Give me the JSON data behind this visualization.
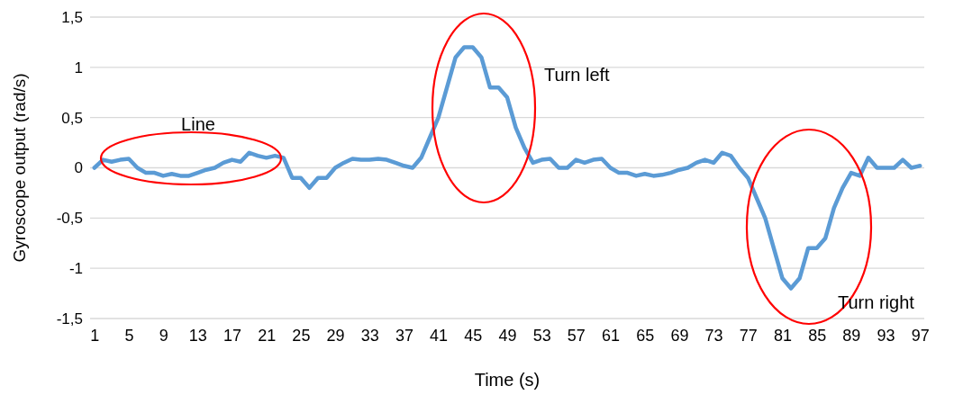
{
  "chart_data": {
    "type": "line",
    "xlabel": "Time (s)",
    "ylabel": "Gyroscope output (rad/s)",
    "x": [
      1,
      2,
      3,
      4,
      5,
      6,
      7,
      8,
      9,
      10,
      11,
      12,
      13,
      14,
      15,
      16,
      17,
      18,
      19,
      20,
      21,
      22,
      23,
      24,
      25,
      26,
      27,
      28,
      29,
      30,
      31,
      32,
      33,
      34,
      35,
      36,
      37,
      38,
      39,
      40,
      41,
      42,
      43,
      44,
      45,
      46,
      47,
      48,
      49,
      50,
      51,
      52,
      53,
      54,
      55,
      56,
      57,
      58,
      59,
      60,
      61,
      62,
      63,
      64,
      65,
      66,
      67,
      68,
      69,
      70,
      71,
      72,
      73,
      74,
      75,
      76,
      77,
      78,
      79,
      80,
      81,
      82,
      83,
      84,
      85,
      86,
      87,
      88,
      89,
      90,
      91,
      92,
      93,
      94,
      95,
      96,
      97
    ],
    "series": [
      {
        "color": "#5b9bd5",
        "values": [
          0,
          0.08,
          0.06,
          0.08,
          0.09,
          0,
          -0.05,
          -0.05,
          -0.08,
          -0.06,
          -0.08,
          -0.08,
          -0.05,
          -0.02,
          0,
          0.05,
          0.08,
          0.06,
          0.15,
          0.12,
          0.1,
          0.12,
          0.1,
          -0.1,
          -0.1,
          -0.2,
          -0.1,
          -0.1,
          0,
          0.05,
          0.09,
          0.08,
          0.08,
          0.09,
          0.08,
          0.05,
          0.02,
          0,
          0.1,
          0.3,
          0.5,
          0.8,
          1.1,
          1.2,
          1.2,
          1.1,
          0.8,
          0.8,
          0.7,
          0.4,
          0.2,
          0.05,
          0.08,
          0.09,
          0,
          0,
          0.08,
          0.05,
          0.08,
          0.09,
          0,
          -0.05,
          -0.05,
          -0.08,
          -0.06,
          -0.08,
          -0.07,
          -0.05,
          -0.02,
          0,
          0.05,
          0.08,
          0.05,
          0.15,
          0.12,
          0,
          -0.1,
          -0.3,
          -0.5,
          -0.8,
          -1.1,
          -1.2,
          -1.1,
          -0.8,
          -0.8,
          -0.7,
          -0.4,
          -0.2,
          -0.05,
          -0.08,
          0.1,
          0,
          0,
          0,
          0.08,
          0,
          0.02
        ]
      }
    ],
    "xlim": [
      0.5,
      97.5
    ],
    "xticks": [
      1,
      5,
      9,
      13,
      17,
      21,
      25,
      29,
      33,
      37,
      41,
      45,
      49,
      53,
      57,
      61,
      65,
      69,
      73,
      77,
      81,
      85,
      89,
      93,
      97
    ],
    "ylim": [
      -1.5,
      1.5
    ],
    "yticks": [
      {
        "value": -1.5,
        "label": "-1,5"
      },
      -1,
      {
        "value": -0.5,
        "label": "-0,5"
      },
      0,
      {
        "value": 0.5,
        "label": "0,5"
      },
      1,
      {
        "value": 1.5,
        "label": "1,5"
      }
    ],
    "grid": "y",
    "line_style": "solid",
    "marker": "none",
    "annotations": [
      "Line",
      "Turn left",
      "Turn right"
    ]
  }
}
